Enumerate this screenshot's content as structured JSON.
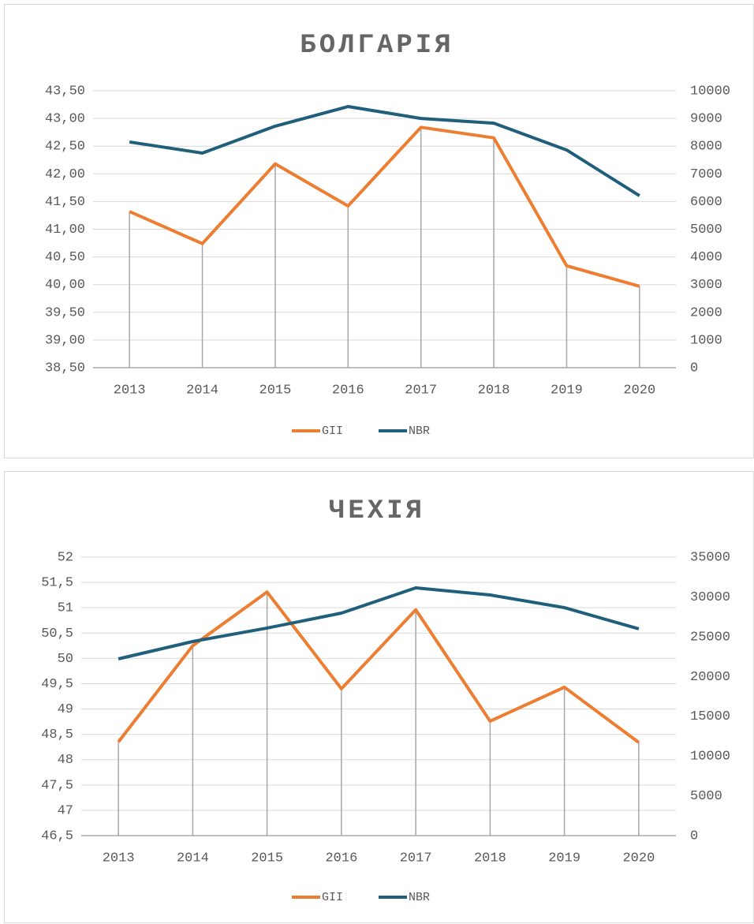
{
  "chart_data": [
    {
      "type": "line",
      "title": "БОЛГАРІЯ",
      "categories": [
        "2013",
        "2014",
        "2015",
        "2016",
        "2017",
        "2018",
        "2019",
        "2020"
      ],
      "series": [
        {
          "name": "GII",
          "color": "#ed7d31",
          "values": [
            41.32,
            40.74,
            42.18,
            41.42,
            42.84,
            42.65,
            40.34,
            39.97
          ]
        },
        {
          "name": "NBR",
          "color": "#1f5f7c",
          "axis": "y2",
          "values": [
            8150,
            7750,
            8720,
            9430,
            9000,
            8830,
            7860,
            6210
          ]
        }
      ],
      "ylim": [
        38.5,
        43.5
      ],
      "yticks": [
        {
          "value": 38.5,
          "label": "38,50"
        },
        {
          "value": 39,
          "label": "39,00"
        },
        {
          "value": 39.5,
          "label": "39,50"
        },
        {
          "value": 40,
          "label": "40,00"
        },
        {
          "value": 40.5,
          "label": "40,50"
        },
        {
          "value": 41,
          "label": "41,00"
        },
        {
          "value": 41.5,
          "label": "41,50"
        },
        {
          "value": 42,
          "label": "42,00"
        },
        {
          "value": 42.5,
          "label": "42,50"
        },
        {
          "value": 43,
          "label": "43,00"
        },
        {
          "value": 43.5,
          "label": "43,50"
        }
      ],
      "y2lim": [
        0,
        10000
      ],
      "y2ticks": [
        0,
        1000,
        2000,
        3000,
        4000,
        5000,
        6000,
        7000,
        8000,
        9000,
        10000
      ],
      "grid": true,
      "legend": "bottom"
    },
    {
      "type": "line",
      "title": "ЧЕХІЯ",
      "categories": [
        "2013",
        "2014",
        "2015",
        "2016",
        "2017",
        "2018",
        "2019",
        "2020"
      ],
      "series": [
        {
          "name": "GII",
          "color": "#ed7d31",
          "values": [
            48.35,
            50.25,
            51.31,
            49.4,
            50.96,
            48.76,
            49.43,
            48.34
          ]
        },
        {
          "name": "NBR",
          "color": "#1f5f7c",
          "axis": "y2",
          "values": [
            22210,
            24390,
            26080,
            27960,
            31130,
            30240,
            28650,
            25980
          ]
        }
      ],
      "ylim": [
        46.5,
        52
      ],
      "yticks": [
        {
          "value": 46.5,
          "label": "46,5"
        },
        47,
        {
          "value": 47.5,
          "label": "47,5"
        },
        48,
        {
          "value": 48.5,
          "label": "48,5"
        },
        49,
        {
          "value": 49.5,
          "label": "49,5"
        },
        50,
        {
          "value": 50.5,
          "label": "50,5"
        },
        51,
        {
          "value": 51.5,
          "label": "51,5"
        },
        52
      ],
      "y2lim": [
        0,
        35000
      ],
      "y2ticks": [
        0,
        5000,
        10000,
        15000,
        20000,
        25000,
        30000,
        35000
      ],
      "grid": true,
      "legend": "bottom"
    }
  ]
}
